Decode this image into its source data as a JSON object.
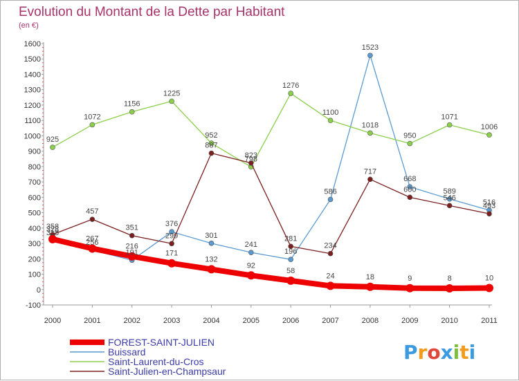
{
  "chart_data": {
    "type": "line",
    "title": "Evolution du Montant de la Dette par Habitant",
    "subtitle": "(en €)",
    "xlabel": "",
    "ylabel": "",
    "categories": [
      "2000",
      "2001",
      "2002",
      "2003",
      "2004",
      "2005",
      "2006",
      "2007",
      "2008",
      "2009",
      "2010",
      "2011"
    ],
    "yticks": [
      -100,
      0,
      100,
      200,
      300,
      400,
      500,
      600,
      700,
      800,
      900,
      1000,
      1100,
      1200,
      1300,
      1400,
      1500,
      1600
    ],
    "ylim": [
      -100,
      1600
    ],
    "grid": false,
    "legend_position": "bottom-left",
    "series": [
      {
        "name": "FOREST-SAINT-JULIEN",
        "color": "#ee0000",
        "highlight": true,
        "values": [
          328,
          267,
          216,
          171,
          132,
          92,
          58,
          24,
          18,
          9,
          8,
          10
        ],
        "labels": [
          "328",
          "267",
          "216",
          "171",
          "132",
          "92",
          "58",
          "24",
          "18",
          "9",
          "8",
          "10"
        ]
      },
      {
        "name": "Buissard",
        "color": "#5a9ad0",
        "highlight": false,
        "values": [
          318,
          256,
          191,
          376,
          301,
          241,
          196,
          586,
          1523,
          668,
          589,
          516
        ],
        "labels": [
          "318",
          "256",
          "191",
          "376",
          "301",
          "241",
          "196",
          "586",
          "1523",
          "668",
          "589",
          "516"
        ]
      },
      {
        "name": "Saint-Laurent-du-Cros",
        "color": "#8bcf4a",
        "highlight": false,
        "values": [
          925,
          1072,
          1156,
          1225,
          952,
          798,
          1276,
          1100,
          1018,
          950,
          1071,
          1006
        ],
        "labels": [
          "925",
          "1072",
          "1156",
          "1225",
          "952",
          "798",
          "1276",
          "1100",
          "1018",
          "950",
          "1071",
          "1006"
        ]
      },
      {
        "name": "Saint-Julien-en-Champsaur",
        "color": "#7a1e1e",
        "highlight": false,
        "values": [
          358,
          457,
          351,
          299,
          887,
          823,
          281,
          234,
          717,
          600,
          546,
          493
        ],
        "labels": [
          "358",
          "457",
          "351",
          "299",
          "887",
          "823",
          "281",
          "234",
          "717",
          "600",
          "546",
          "493"
        ]
      }
    ]
  },
  "logo": {
    "text": "Proxiti",
    "letters": [
      "P",
      "r",
      "o",
      "x",
      "i",
      "t",
      "i"
    ],
    "colors": [
      "#3b9ae0",
      "#f29b1d",
      "#e0463a",
      "#3b9ae0",
      "#7bbf3a",
      "#f29b1d",
      "#3b9ae0"
    ]
  }
}
